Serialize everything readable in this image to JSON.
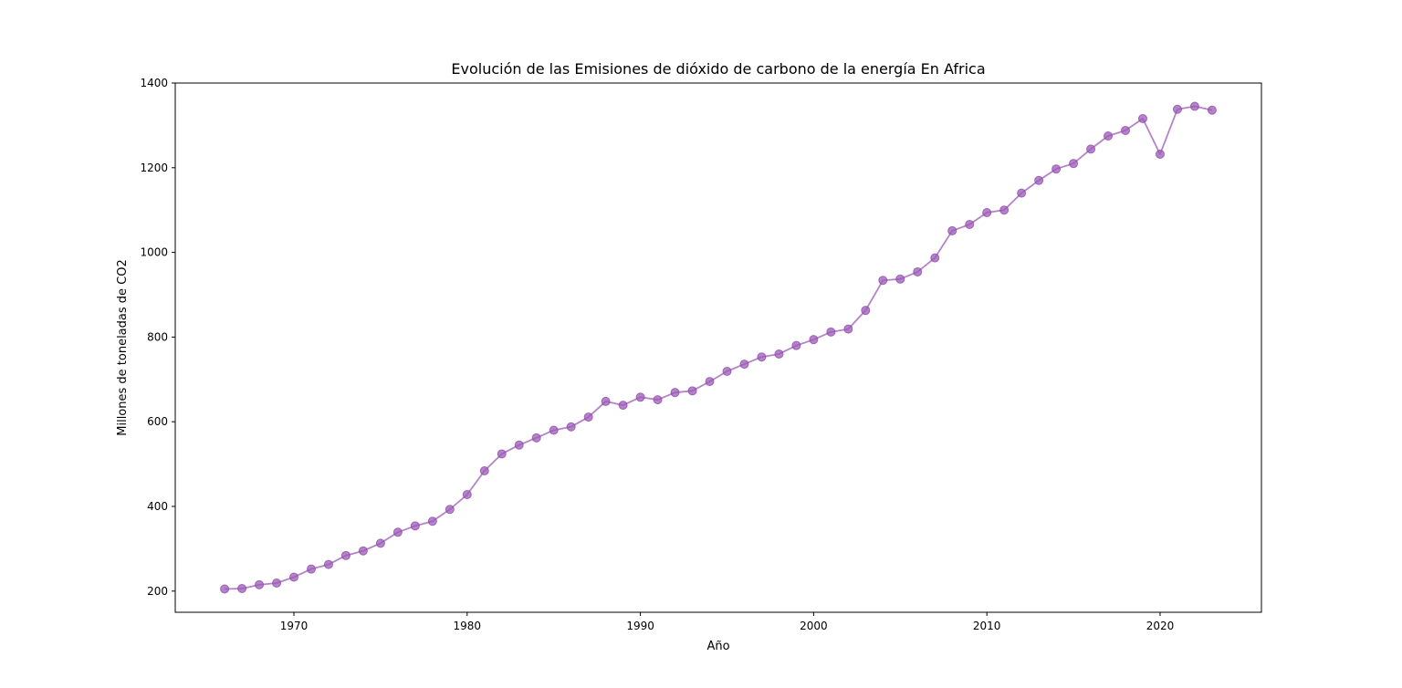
{
  "chart_data": {
    "type": "line",
    "title": "Evolución de las Emisiones de dióxido de carbono de la energía En Africa",
    "xlabel": "Año",
    "ylabel": "Millones de toneladas de CO2",
    "xlim": [
      1963.15,
      2025.85
    ],
    "ylim": [
      150,
      1400
    ],
    "xticks": [
      1970,
      1980,
      1990,
      2000,
      2010,
      2020
    ],
    "yticks": [
      200,
      400,
      600,
      800,
      1000,
      1200,
      1400
    ],
    "grid": false,
    "legend": "none",
    "color": "#9b59b6",
    "series": [
      {
        "x": [
          1966,
          1967,
          1968,
          1969,
          1970,
          1971,
          1972,
          1973,
          1974,
          1975,
          1976,
          1977,
          1978,
          1979,
          1980,
          1981,
          1982,
          1983,
          1984,
          1985,
          1986,
          1987,
          1988,
          1989,
          1990,
          1991,
          1992,
          1993,
          1994,
          1995,
          1996,
          1997,
          1998,
          1999,
          2000,
          2001,
          2002,
          2003,
          2004,
          2005,
          2006,
          2007,
          2008,
          2009,
          2010,
          2011,
          2012,
          2013,
          2014,
          2015,
          2016,
          2017,
          2018,
          2019,
          2020,
          2021,
          2022,
          2023
        ],
        "values": [
          205,
          206,
          215,
          219,
          233,
          252,
          263,
          284,
          295,
          313,
          339,
          354,
          365,
          393,
          428,
          484,
          524,
          545,
          562,
          580,
          588,
          611,
          648,
          639,
          658,
          652,
          669,
          673,
          695,
          719,
          736,
          753,
          760,
          780,
          794,
          812,
          819,
          863,
          934,
          937,
          954,
          987,
          1051,
          1066,
          1094,
          1100,
          1140,
          1170,
          1197,
          1210,
          1244,
          1275,
          1288,
          1316,
          1232,
          1338,
          1345,
          1336
        ]
      }
    ]
  }
}
